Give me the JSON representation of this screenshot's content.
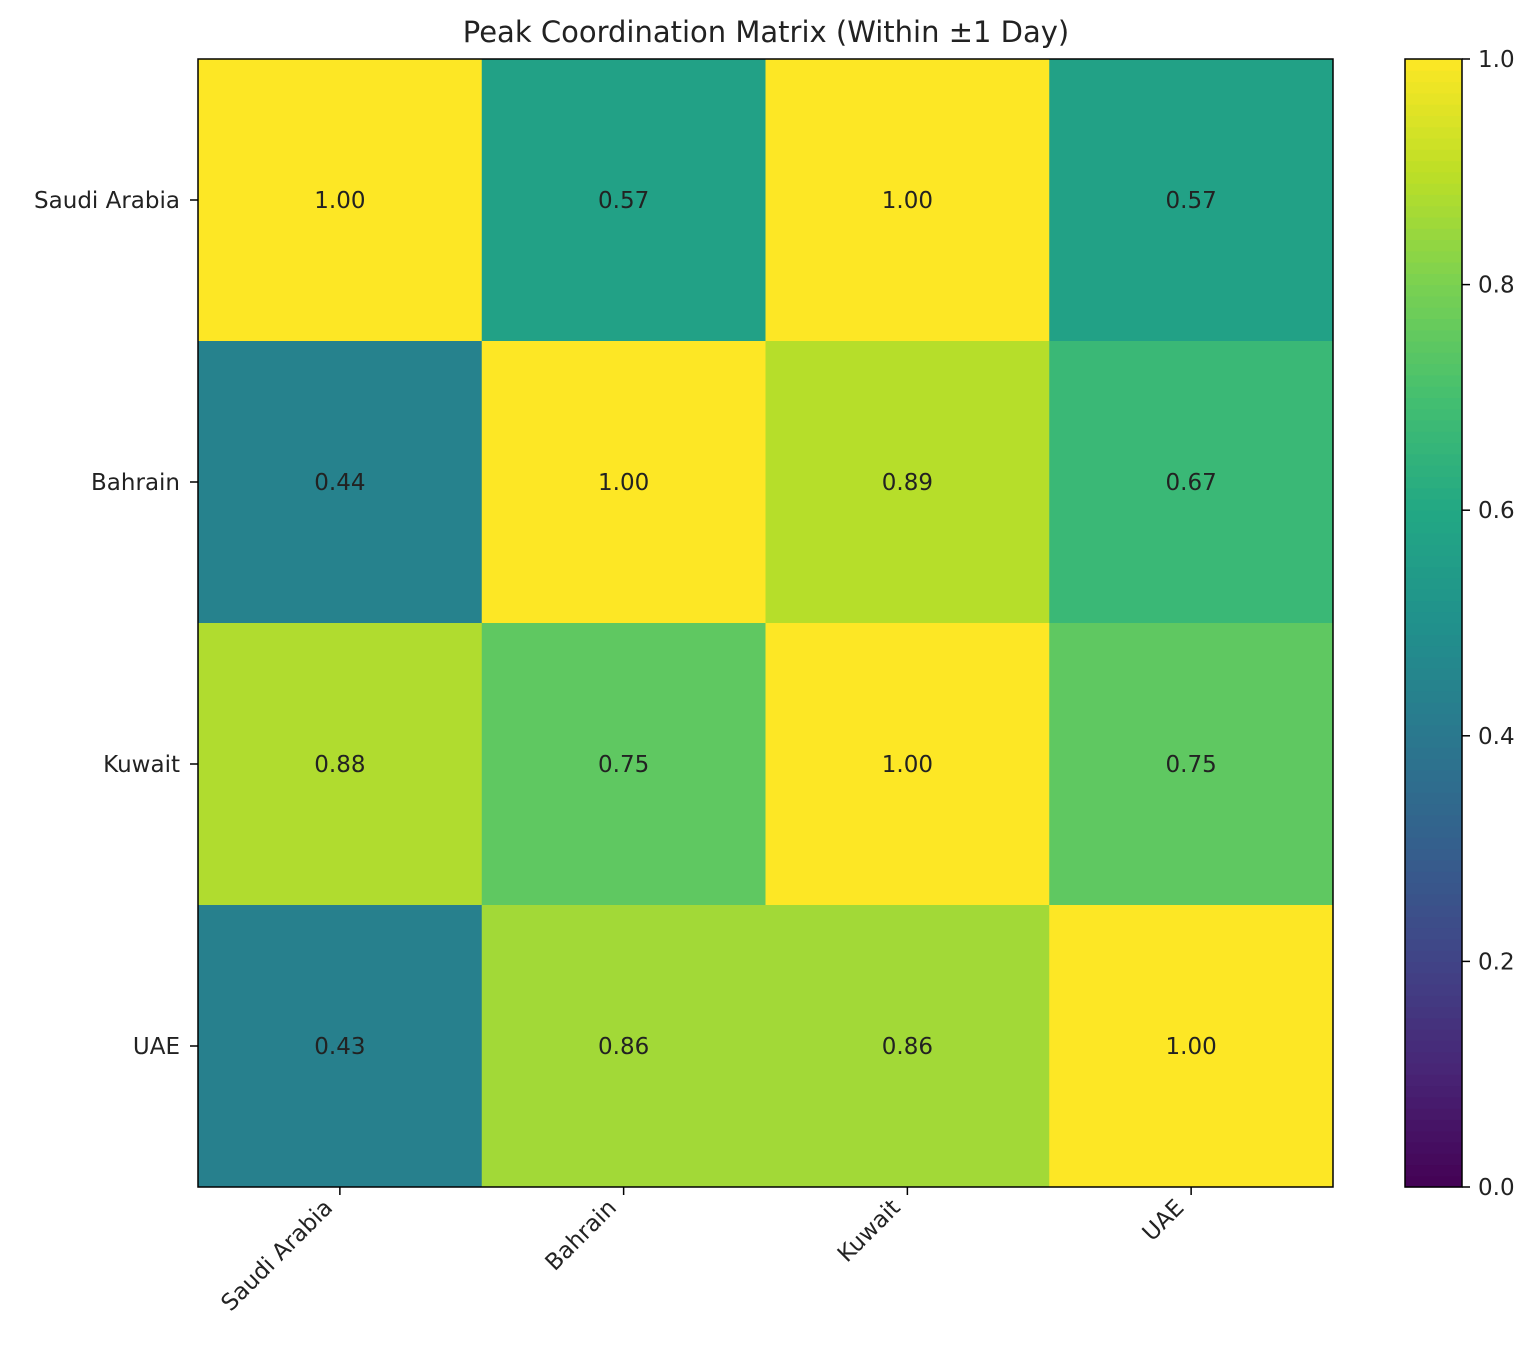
{
  "chart_data": {
    "type": "heatmap",
    "title": "Peak Coordination Matrix (Within ±1 Day)",
    "rows": [
      "Saudi Arabia",
      "Bahrain",
      "Kuwait",
      "UAE"
    ],
    "columns": [
      "Saudi Arabia",
      "Bahrain",
      "Kuwait",
      "UAE"
    ],
    "values": [
      [
        1.0,
        0.57,
        1.0,
        0.57
      ],
      [
        0.44,
        1.0,
        0.89,
        0.67
      ],
      [
        0.88,
        0.75,
        1.0,
        0.75
      ],
      [
        0.43,
        0.86,
        0.86,
        1.0
      ]
    ],
    "value_format": "2 decimals",
    "colormap": "viridis",
    "colorbar": {
      "range": [
        0.0,
        1.0
      ],
      "ticks": [
        0.0,
        0.2,
        0.4,
        0.6,
        0.8,
        1.0
      ],
      "tick_labels": [
        "0.0",
        "0.2",
        "0.4",
        "0.6",
        "0.8",
        "1.0"
      ]
    },
    "xtick_rotation": 45,
    "grid": false
  }
}
